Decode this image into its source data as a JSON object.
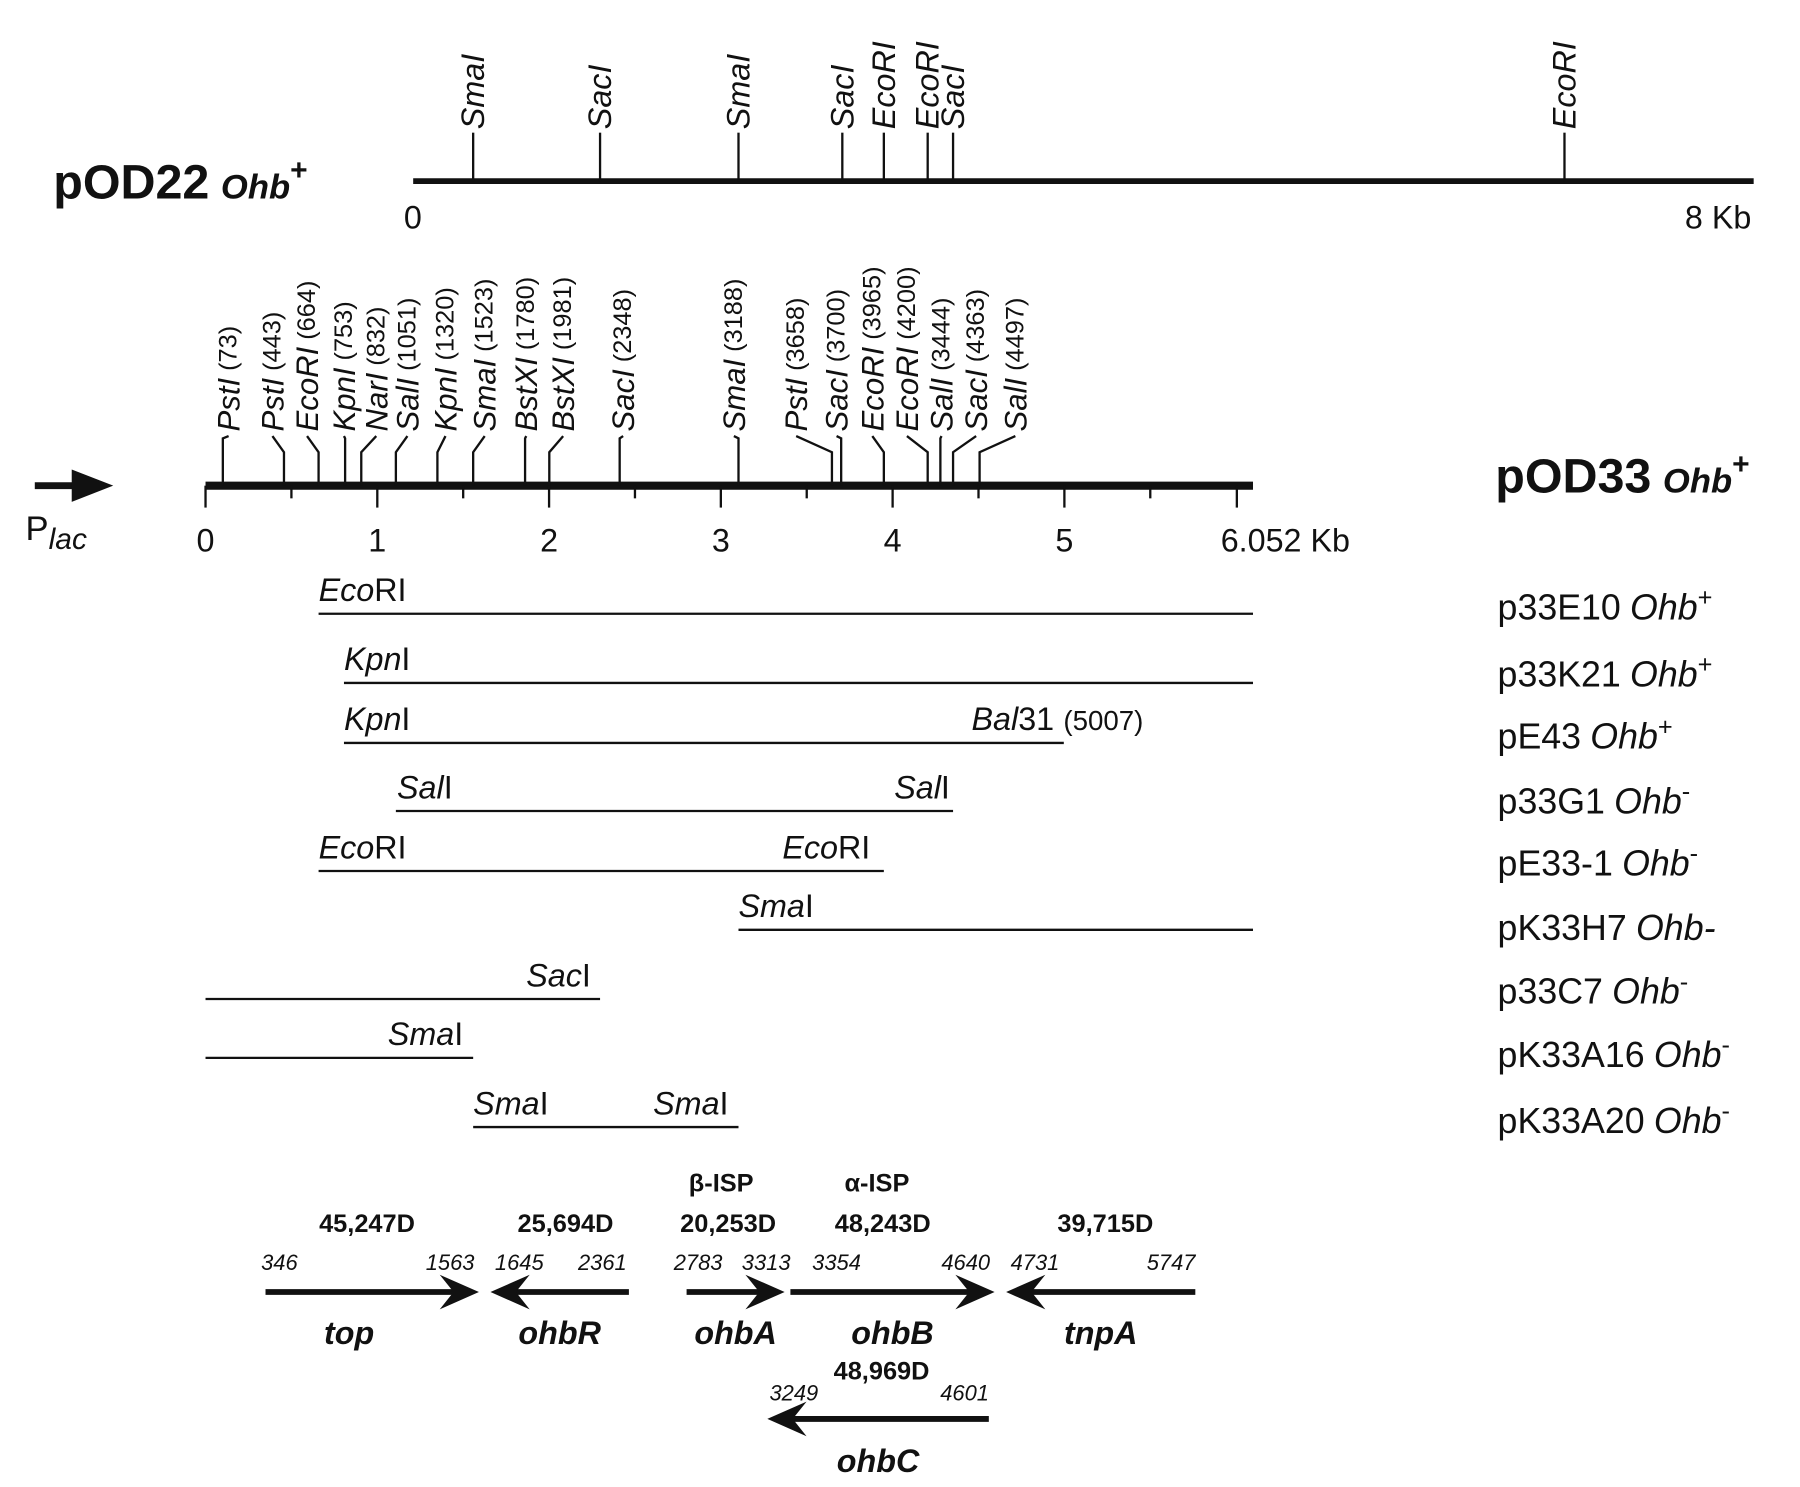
{
  "pOD22": {
    "name": "pOD22",
    "gene": "Ohb",
    "sign": "+",
    "sites": [
      "SmaI",
      "SacI",
      "SmaI",
      "SacI",
      "EcoRI",
      "EcoRI",
      "SacI",
      "EcoRI"
    ],
    "start": "0",
    "end": "8 Kb"
  },
  "pOD33": {
    "name": "pOD33",
    "gene": "Ohb",
    "sign": "+",
    "promoter": "P",
    "promoter_sub": "lac",
    "sites": [
      {
        "enzyme": "PstI",
        "position": "(73)"
      },
      {
        "enzyme": "PstI",
        "position": "(443)"
      },
      {
        "enzyme": "EcoRI",
        "position": "(664)"
      },
      {
        "enzyme": "KpnI",
        "position": "(753)"
      },
      {
        "enzyme": "NarI",
        "position": "(832)"
      },
      {
        "enzyme": "SalI",
        "position": "(1051)"
      },
      {
        "enzyme": "KpnI",
        "position": "(1320)"
      },
      {
        "enzyme": "SmaI",
        "position": "(1523)"
      },
      {
        "enzyme": "BstXI",
        "position": "(1780)"
      },
      {
        "enzyme": "BstXI",
        "position": "(1981)"
      },
      {
        "enzyme": "SacI",
        "position": "(2348)"
      },
      {
        "enzyme": "SmaI",
        "position": "(3188)"
      },
      {
        "enzyme": "PstI",
        "position": "(3658)"
      },
      {
        "enzyme": "SacI",
        "position": "(3700)"
      },
      {
        "enzyme": "EcoRI",
        "position": "(3965)"
      },
      {
        "enzyme": "EcoRI",
        "position": "(4200)"
      },
      {
        "enzyme": "SalI",
        "position": "(3444)"
      },
      {
        "enzyme": "SacI",
        "position": "(4363)"
      },
      {
        "enzyme": "SalI",
        "position": "(4497)"
      }
    ],
    "scale": [
      "0",
      "1",
      "2",
      "3",
      "4",
      "5",
      "6.052 Kb"
    ]
  },
  "constructs": [
    {
      "name": "p33E10",
      "gene": "Ohb",
      "sign": "+",
      "labels": [
        {
          "italic": "Eco",
          "roman": "RI"
        }
      ]
    },
    {
      "name": "p33K21",
      "gene": "Ohb",
      "sign": "+",
      "labels": [
        {
          "italic": "Kpn",
          "roman": "I"
        }
      ]
    },
    {
      "name": "pE43",
      "gene": "Ohb",
      "sign": "+",
      "labels": [
        {
          "italic": "Kpn",
          "roman": "I"
        },
        {
          "italic": "Bal",
          "roman": "31",
          "note": "(5007)"
        }
      ]
    },
    {
      "name": "p33G1",
      "gene": "Ohb",
      "sign": "-",
      "labels": [
        {
          "italic": "Sal",
          "roman": "I"
        },
        {
          "italic": "Sal",
          "roman": "I"
        }
      ]
    },
    {
      "name": "pE33-1",
      "gene": "Ohb",
      "sign": "-",
      "labels": [
        {
          "italic": "Eco",
          "roman": "RI"
        },
        {
          "italic": "Eco",
          "roman": "RI"
        }
      ]
    },
    {
      "name": "pK33H7",
      "gene": "Ohb-",
      "labels": [
        {
          "italic": "Sma",
          "roman": "I"
        }
      ]
    },
    {
      "name": "p33C7",
      "gene": "Ohb",
      "sign": "-",
      "labels": [
        {
          "italic": "Sac",
          "roman": "I"
        }
      ]
    },
    {
      "name": "pK33A16",
      "gene": "Ohb",
      "sign": "-",
      "labels": [
        {
          "italic": "Sma",
          "roman": "I"
        }
      ]
    },
    {
      "name": "pK33A20",
      "gene": "Ohb",
      "sign": "-",
      "labels": [
        {
          "italic": "Sma",
          "roman": "I"
        },
        {
          "italic": "Sma",
          "roman": "I"
        }
      ]
    }
  ],
  "genes": [
    {
      "name": "top",
      "mass": "45,247D",
      "from": "346",
      "to": "1563"
    },
    {
      "name": "ohbR",
      "mass": "25,694D",
      "from": "1645",
      "to": "2361"
    },
    {
      "name": "ohbA",
      "protein": "β-ISP",
      "mass": "20,253D",
      "from": "2783",
      "to": "3313"
    },
    {
      "name": "ohbB",
      "protein": "α-ISP",
      "mass": "48,243D",
      "from": "3354",
      "to": "4640"
    },
    {
      "name": "tnpA",
      "mass": "39,715D",
      "from": "4731",
      "to": "5747"
    },
    {
      "name": "ohbC",
      "mass": "48,969D",
      "from": "3249",
      "to": "4601"
    }
  ]
}
